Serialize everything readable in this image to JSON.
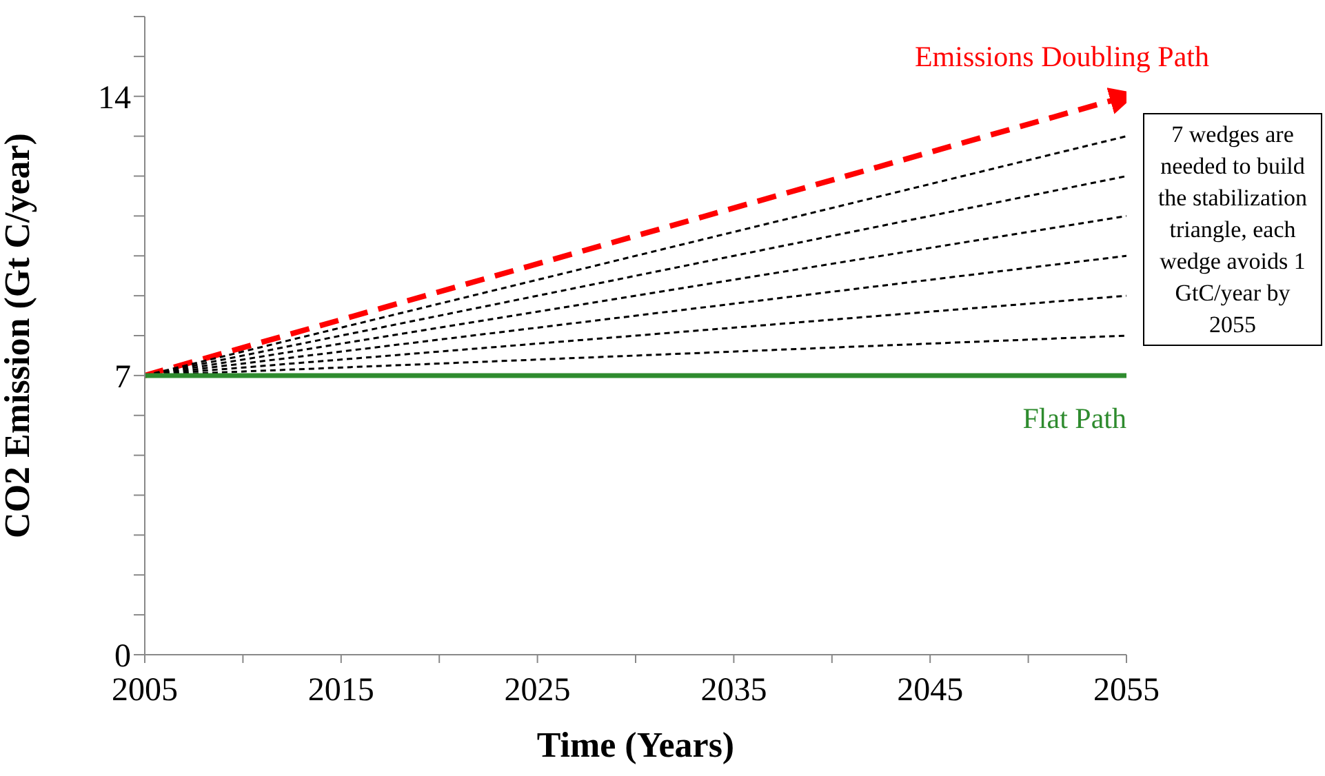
{
  "chart_data": {
    "type": "line",
    "xlabel": "Time (Years)",
    "ylabel": "CO2 Emission (Gt C/year)",
    "x": [
      2005,
      2055
    ],
    "series": [
      {
        "name": "Emissions Doubling Path",
        "color": "#ff0000",
        "values": [
          7,
          14
        ],
        "line_style": "dashed"
      },
      {
        "color": "#000000",
        "values": [
          7,
          13
        ],
        "line_style": "dotted"
      },
      {
        "color": "#000000",
        "values": [
          7,
          12
        ],
        "line_style": "dotted"
      },
      {
        "color": "#000000",
        "values": [
          7,
          11
        ],
        "line_style": "dotted"
      },
      {
        "color": "#000000",
        "values": [
          7,
          10
        ],
        "line_style": "dotted"
      },
      {
        "color": "#000000",
        "values": [
          7,
          9
        ],
        "line_style": "dotted"
      },
      {
        "color": "#000000",
        "values": [
          7,
          8
        ],
        "line_style": "dotted"
      },
      {
        "name": "Flat Path",
        "color": "#2e8b2e",
        "values": [
          7,
          7
        ],
        "line_style": "solid"
      }
    ],
    "xlim": [
      2005,
      2055
    ],
    "xticks": [
      2005,
      {
        "value": 2010,
        "label": null
      },
      2015,
      {
        "value": 2020,
        "label": null
      },
      2025,
      {
        "value": 2030,
        "label": null
      },
      2035,
      {
        "value": 2040,
        "label": null
      },
      2045,
      {
        "value": 2050,
        "label": null
      },
      2055
    ],
    "ylim": [
      0,
      16
    ],
    "yticks": [
      0,
      {
        "value": 1,
        "label": null
      },
      {
        "value": 2,
        "label": null
      },
      {
        "value": 3,
        "label": null
      },
      {
        "value": 4,
        "label": null
      },
      {
        "value": 5,
        "label": null
      },
      {
        "value": 6,
        "label": null
      },
      7,
      {
        "value": 8,
        "label": null
      },
      {
        "value": 9,
        "label": null
      },
      {
        "value": 10,
        "label": null
      },
      {
        "value": 11,
        "label": null
      },
      {
        "value": 12,
        "label": null
      },
      {
        "value": 13,
        "label": null
      },
      14,
      {
        "value": 15,
        "label": null
      },
      {
        "value": 16,
        "label": null
      }
    ],
    "annotations": [
      "7 wedges are needed to build the stabilization triangle, each wedge avoids 1 GtC/year by 2055"
    ],
    "marker": "none"
  }
}
